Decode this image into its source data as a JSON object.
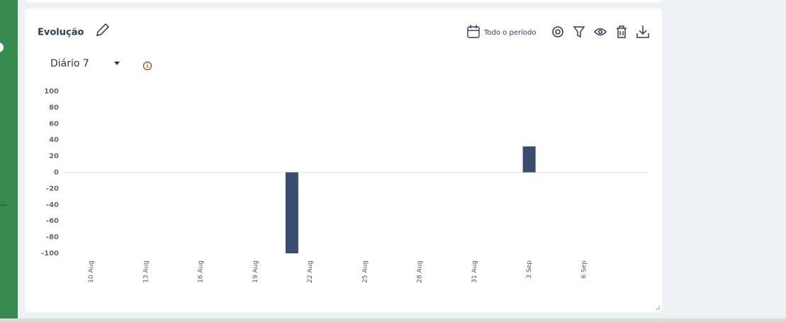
{
  "panel": {
    "title": "Evolução",
    "period": "Todo o período",
    "dropdown": "Diário 7"
  },
  "chart_data": {
    "type": "bar",
    "color": "#3a4d6e",
    "categories": [
      null,
      "10 Aug",
      null,
      null,
      "13 Aug",
      null,
      null,
      "16 Aug",
      null,
      null,
      "19 Aug",
      null,
      null,
      "22 Aug",
      null,
      null,
      "25 Aug",
      null,
      null,
      "28 Aug",
      null,
      null,
      "31 Aug",
      null,
      null,
      "3 Sep",
      null,
      null,
      "6 Sep",
      null,
      null,
      null
    ],
    "values": [
      null,
      null,
      null,
      null,
      null,
      null,
      null,
      null,
      null,
      null,
      null,
      null,
      -100,
      null,
      null,
      null,
      null,
      null,
      null,
      null,
      null,
      null,
      null,
      null,
      null,
      32,
      null,
      null,
      null,
      null,
      null,
      null
    ],
    "ylim": [
      -100,
      100
    ],
    "yticks": [
      -100,
      -80,
      -60,
      -40,
      -20,
      0,
      20,
      40,
      60,
      80,
      100
    ],
    "grid": false
  }
}
